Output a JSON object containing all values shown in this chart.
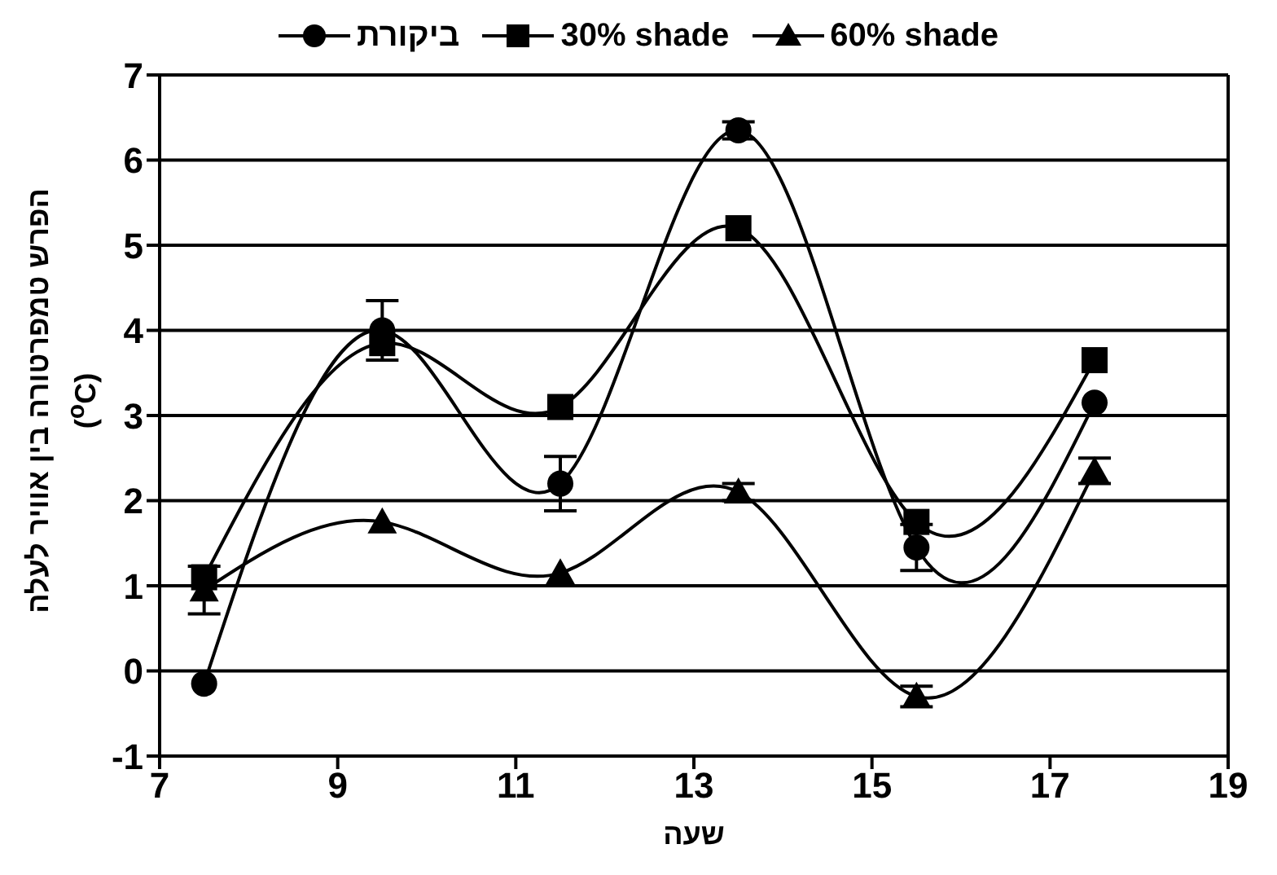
{
  "chart_data": {
    "type": "line",
    "xlabel": "שעה",
    "ylabel": "הפרש טמפרטורה בין אוויר לעלה ($^{o}$C)",
    "x": [
      7.5,
      9.5,
      11.5,
      13.5,
      15.5,
      17.5
    ],
    "series": [
      {
        "name": "ביקורת",
        "color": "#000000",
        "marker": "circle",
        "values": [
          -0.15,
          4.0,
          2.2,
          6.35,
          1.45,
          3.15
        ],
        "errors": [
          null,
          0.35,
          0.32,
          0.1,
          0.27,
          null
        ]
      },
      {
        "name": "30% shade",
        "color": "#000000",
        "marker": "square",
        "values": [
          1.1,
          3.85,
          3.1,
          5.2,
          1.75,
          3.65
        ]
      },
      {
        "name": "60% shade",
        "color": "#000000",
        "marker": "triangle",
        "values": [
          0.95,
          1.75,
          1.15,
          2.1,
          -0.3,
          2.35
        ],
        "errors": [
          0.28,
          null,
          null,
          0.1,
          0.12,
          0.15
        ]
      }
    ],
    "xlim": [
      7,
      19
    ],
    "xticks": [
      7,
      9,
      11,
      13,
      15,
      17,
      19
    ],
    "ylim": [
      -1,
      7
    ],
    "yticks": [
      -1,
      0,
      1,
      2,
      3,
      4,
      5,
      6,
      7
    ],
    "grid": "y",
    "legend": "top",
    "line_style": "solid"
  }
}
